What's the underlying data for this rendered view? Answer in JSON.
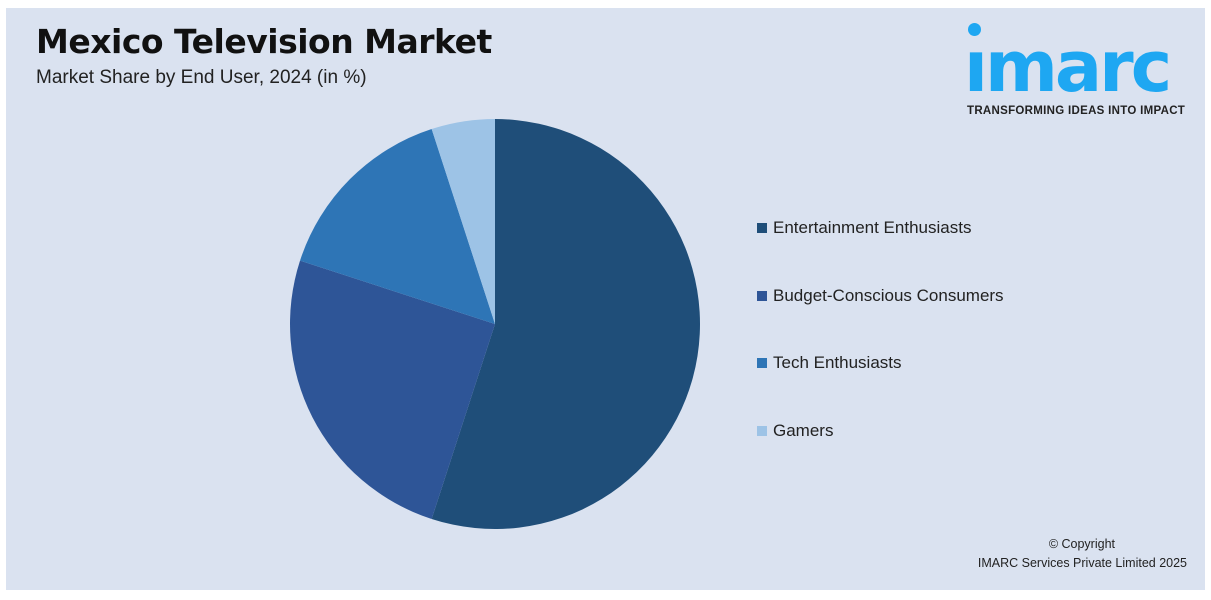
{
  "header": {
    "title": "Mexico Television Market",
    "subtitle": "Market Share by End User, 2024 (in %)"
  },
  "logo": {
    "text": "imarc",
    "tagline": "TRANSFORMING IDEAS INTO IMPACT",
    "color": "#1ea7f2"
  },
  "chart_data": {
    "type": "pie",
    "title": "Mexico Television Market",
    "subtitle": "Market Share by End User, 2024 (in %)",
    "categories": [
      "Entertainment Enthusiasts",
      "Budget-Conscious Consumers",
      "Tech Enthusiasts",
      "Gamers"
    ],
    "values": [
      55,
      25,
      15,
      5
    ],
    "colors": [
      "#1f4e79",
      "#2e5597",
      "#2e75b6",
      "#9dc3e6"
    ],
    "start": "12 o'clock, clockwise",
    "legend": "right"
  },
  "footer": {
    "copyright": "© Copyright",
    "company": "IMARC Services Private Limited 2025"
  }
}
